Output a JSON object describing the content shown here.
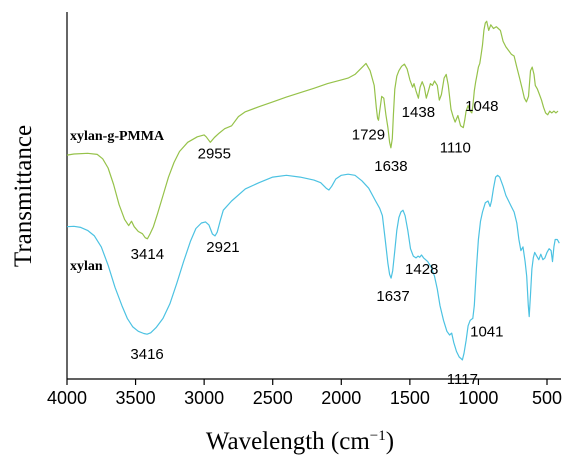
{
  "chart_data": {
    "type": "line",
    "xlabel": "Wavelength (cm",
    "xlabel_sup": "−1",
    "xlabel_close": ")",
    "ylabel": "Transmittance",
    "x_reversed": true,
    "xlim": [
      4000,
      400
    ],
    "ylim": [
      0,
      100
    ],
    "x_ticks": [
      4000,
      3500,
      3000,
      2500,
      2000,
      1500,
      1000,
      500
    ],
    "x_tick_labels": [
      "4000",
      "3500",
      "3000",
      "2500",
      "2000",
      "1500",
      "1000",
      "500"
    ],
    "grid": false,
    "series": [
      {
        "name": "xylan-g-PMMA",
        "color": "#96c24a",
        "points": [
          [
            4000,
            61.0
          ],
          [
            3950,
            61.3
          ],
          [
            3850,
            61.5
          ],
          [
            3780,
            61.2
          ],
          [
            3740,
            60.0
          ],
          [
            3700,
            57.5
          ],
          [
            3660,
            53.0
          ],
          [
            3620,
            47.5
          ],
          [
            3580,
            43.5
          ],
          [
            3550,
            41.8
          ],
          [
            3530,
            43.0
          ],
          [
            3510,
            41.5
          ],
          [
            3480,
            40.2
          ],
          [
            3450,
            39.6
          ],
          [
            3430,
            38.5
          ],
          [
            3414,
            38.2
          ],
          [
            3395,
            39.5
          ],
          [
            3370,
            41.5
          ],
          [
            3340,
            45.0
          ],
          [
            3300,
            50.0
          ],
          [
            3260,
            55.0
          ],
          [
            3220,
            59.0
          ],
          [
            3180,
            62.0
          ],
          [
            3120,
            64.5
          ],
          [
            3050,
            66.0
          ],
          [
            3000,
            66.5
          ],
          [
            2985,
            66.0
          ],
          [
            2955,
            64.5
          ],
          [
            2925,
            65.8
          ],
          [
            2890,
            67.0
          ],
          [
            2850,
            68.2
          ],
          [
            2800,
            69.0
          ],
          [
            2750,
            71.5
          ],
          [
            2700,
            72.8
          ],
          [
            2600,
            74.2
          ],
          [
            2500,
            75.5
          ],
          [
            2400,
            76.8
          ],
          [
            2300,
            78.0
          ],
          [
            2200,
            79.2
          ],
          [
            2100,
            80.5
          ],
          [
            2000,
            81.5
          ],
          [
            1950,
            82.0
          ],
          [
            1900,
            83.0
          ],
          [
            1860,
            84.5
          ],
          [
            1820,
            86.0
          ],
          [
            1790,
            84.0
          ],
          [
            1760,
            80.0
          ],
          [
            1745,
            74.0
          ],
          [
            1735,
            71.0
          ],
          [
            1729,
            70.5
          ],
          [
            1720,
            73.0
          ],
          [
            1705,
            77.0
          ],
          [
            1690,
            76.5
          ],
          [
            1675,
            72.0
          ],
          [
            1660,
            68.5
          ],
          [
            1648,
            64.5
          ],
          [
            1638,
            63.0
          ],
          [
            1628,
            65.5
          ],
          [
            1620,
            72.0
          ],
          [
            1610,
            79.0
          ],
          [
            1595,
            82.5
          ],
          [
            1580,
            84.0
          ],
          [
            1560,
            85.2
          ],
          [
            1540,
            85.8
          ],
          [
            1520,
            84.5
          ],
          [
            1500,
            81.5
          ],
          [
            1480,
            79.5
          ],
          [
            1470,
            80.5
          ],
          [
            1455,
            78.5
          ],
          [
            1438,
            76.5
          ],
          [
            1425,
            79.5
          ],
          [
            1410,
            81.0
          ],
          [
            1395,
            79.5
          ],
          [
            1380,
            76.5
          ],
          [
            1365,
            78.5
          ],
          [
            1350,
            80.5
          ],
          [
            1335,
            80.0
          ],
          [
            1320,
            81.2
          ],
          [
            1300,
            80.0
          ],
          [
            1285,
            76.0
          ],
          [
            1270,
            77.5
          ],
          [
            1250,
            82.0
          ],
          [
            1235,
            83.0
          ],
          [
            1220,
            80.0
          ],
          [
            1200,
            73.5
          ],
          [
            1185,
            71.5
          ],
          [
            1170,
            70.0
          ],
          [
            1150,
            71.8
          ],
          [
            1130,
            69.0
          ],
          [
            1115,
            68.6
          ],
          [
            1110,
            68.5
          ],
          [
            1100,
            70.5
          ],
          [
            1090,
            73.0
          ],
          [
            1075,
            74.5
          ],
          [
            1060,
            73.0
          ],
          [
            1048,
            72.5
          ],
          [
            1040,
            74.5
          ],
          [
            1030,
            78.5
          ],
          [
            1020,
            81.0
          ],
          [
            1010,
            83.0
          ],
          [
            1000,
            85.0
          ],
          [
            990,
            86.0
          ],
          [
            980,
            88.5
          ],
          [
            970,
            91.0
          ],
          [
            960,
            95.0
          ],
          [
            950,
            97.0
          ],
          [
            940,
            97.5
          ],
          [
            925,
            95.0
          ],
          [
            910,
            96.5
          ],
          [
            890,
            95.5
          ],
          [
            870,
            96.0
          ],
          [
            855,
            95.5
          ],
          [
            840,
            95.0
          ],
          [
            820,
            92.0
          ],
          [
            800,
            90.5
          ],
          [
            780,
            89.5
          ],
          [
            760,
            88.5
          ],
          [
            740,
            88.0
          ],
          [
            720,
            85.0
          ],
          [
            700,
            82.0
          ],
          [
            680,
            79.0
          ],
          [
            665,
            76.5
          ],
          [
            650,
            75.5
          ],
          [
            635,
            77.0
          ],
          [
            620,
            84.0
          ],
          [
            608,
            85.0
          ],
          [
            595,
            83.0
          ],
          [
            585,
            80.0
          ],
          [
            570,
            79.0
          ],
          [
            555,
            77.5
          ],
          [
            540,
            76.0
          ],
          [
            525,
            74.0
          ],
          [
            510,
            72.5
          ],
          [
            495,
            72.0
          ],
          [
            480,
            73.0
          ],
          [
            465,
            72.5
          ],
          [
            450,
            73.0
          ],
          [
            435,
            72.5
          ],
          [
            420,
            73.0
          ]
        ],
        "annotations": [
          {
            "x": 3414,
            "label": "3414"
          },
          {
            "x": 2955,
            "label": "2955"
          },
          {
            "x": 1729,
            "label": "1729"
          },
          {
            "x": 1638,
            "label": "1638"
          },
          {
            "x": 1438,
            "label": "1438"
          },
          {
            "x": 1110,
            "label": "1110"
          },
          {
            "x": 1048,
            "label": "1048"
          }
        ]
      },
      {
        "name": "xylan",
        "color": "#4cc2e2",
        "points": [
          [
            4000,
            41.5
          ],
          [
            3950,
            41.6
          ],
          [
            3900,
            41.3
          ],
          [
            3850,
            40.5
          ],
          [
            3800,
            39.0
          ],
          [
            3750,
            36.0
          ],
          [
            3700,
            31.0
          ],
          [
            3650,
            25.0
          ],
          [
            3600,
            20.0
          ],
          [
            3560,
            16.5
          ],
          [
            3520,
            14.2
          ],
          [
            3480,
            13.0
          ],
          [
            3440,
            12.4
          ],
          [
            3416,
            12.2
          ],
          [
            3390,
            12.6
          ],
          [
            3350,
            14.0
          ],
          [
            3300,
            16.5
          ],
          [
            3250,
            20.5
          ],
          [
            3200,
            26.0
          ],
          [
            3150,
            32.0
          ],
          [
            3100,
            37.5
          ],
          [
            3060,
            41.0
          ],
          [
            3020,
            42.5
          ],
          [
            2990,
            42.8
          ],
          [
            2965,
            42.0
          ],
          [
            2940,
            39.5
          ],
          [
            2921,
            39.0
          ],
          [
            2905,
            40.0
          ],
          [
            2880,
            43.5
          ],
          [
            2860,
            46.0
          ],
          [
            2800,
            48.5
          ],
          [
            2700,
            51.8
          ],
          [
            2600,
            53.5
          ],
          [
            2500,
            55.0
          ],
          [
            2400,
            55.5
          ],
          [
            2300,
            55.0
          ],
          [
            2200,
            54.2
          ],
          [
            2150,
            53.5
          ],
          [
            2110,
            52.0
          ],
          [
            2090,
            51.5
          ],
          [
            2070,
            52.5
          ],
          [
            2040,
            54.5
          ],
          [
            2000,
            55.5
          ],
          [
            1950,
            55.8
          ],
          [
            1900,
            55.5
          ],
          [
            1850,
            54.0
          ],
          [
            1800,
            52.0
          ],
          [
            1750,
            48.5
          ],
          [
            1720,
            46.5
          ],
          [
            1700,
            44.5
          ],
          [
            1680,
            38.0
          ],
          [
            1660,
            31.5
          ],
          [
            1648,
            28.5
          ],
          [
            1637,
            27.5
          ],
          [
            1625,
            29.5
          ],
          [
            1610,
            35.0
          ],
          [
            1595,
            40.5
          ],
          [
            1580,
            44.0
          ],
          [
            1565,
            45.5
          ],
          [
            1550,
            46.0
          ],
          [
            1535,
            44.5
          ],
          [
            1515,
            40.5
          ],
          [
            1495,
            35.5
          ],
          [
            1475,
            33.5
          ],
          [
            1455,
            33.0
          ],
          [
            1440,
            33.5
          ],
          [
            1428,
            33.2
          ],
          [
            1415,
            33.8
          ],
          [
            1400,
            33.0
          ],
          [
            1385,
            32.5
          ],
          [
            1370,
            32.0
          ],
          [
            1345,
            30.5
          ],
          [
            1320,
            28.0
          ],
          [
            1300,
            24.5
          ],
          [
            1280,
            20.0
          ],
          [
            1255,
            16.0
          ],
          [
            1230,
            13.0
          ],
          [
            1210,
            12.0
          ],
          [
            1195,
            12.5
          ],
          [
            1180,
            10.0
          ],
          [
            1160,
            7.5
          ],
          [
            1140,
            6.0
          ],
          [
            1125,
            5.5
          ],
          [
            1117,
            5.2
          ],
          [
            1105,
            7.0
          ],
          [
            1090,
            10.5
          ],
          [
            1075,
            14.5
          ],
          [
            1060,
            16.0
          ],
          [
            1041,
            16.5
          ],
          [
            1030,
            20.0
          ],
          [
            1015,
            30.0
          ],
          [
            1000,
            38.0
          ],
          [
            985,
            43.0
          ],
          [
            970,
            45.5
          ],
          [
            950,
            48.0
          ],
          [
            930,
            48.5
          ],
          [
            915,
            47.0
          ],
          [
            905,
            48.5
          ],
          [
            890,
            52.0
          ],
          [
            875,
            55.0
          ],
          [
            860,
            55.5
          ],
          [
            845,
            55.0
          ],
          [
            820,
            52.5
          ],
          [
            800,
            50.0
          ],
          [
            780,
            48.5
          ],
          [
            760,
            47.0
          ],
          [
            740,
            45.5
          ],
          [
            720,
            42.5
          ],
          [
            705,
            38.0
          ],
          [
            690,
            35.0
          ],
          [
            675,
            36.0
          ],
          [
            660,
            32.0
          ],
          [
            648,
            28.0
          ],
          [
            636,
            20.0
          ],
          [
            630,
            17.0
          ],
          [
            620,
            23.0
          ],
          [
            610,
            30.0
          ],
          [
            600,
            33.0
          ],
          [
            590,
            34.5
          ],
          [
            575,
            33.5
          ],
          [
            560,
            32.5
          ],
          [
            545,
            34.0
          ],
          [
            530,
            32.5
          ],
          [
            515,
            33.0
          ],
          [
            500,
            34.5
          ],
          [
            485,
            35.5
          ],
          [
            470,
            35.0
          ],
          [
            460,
            32.0
          ],
          [
            450,
            36.0
          ],
          [
            440,
            38.0
          ],
          [
            425,
            38.0
          ],
          [
            410,
            37.0
          ]
        ],
        "annotations": [
          {
            "x": 3416,
            "label": "3416"
          },
          {
            "x": 2921,
            "label": "2921"
          },
          {
            "x": 1637,
            "label": "1637"
          },
          {
            "x": 1428,
            "label": "1428"
          },
          {
            "x": 1117,
            "label": "1117"
          },
          {
            "x": 1041,
            "label": "1041"
          }
        ]
      }
    ]
  }
}
